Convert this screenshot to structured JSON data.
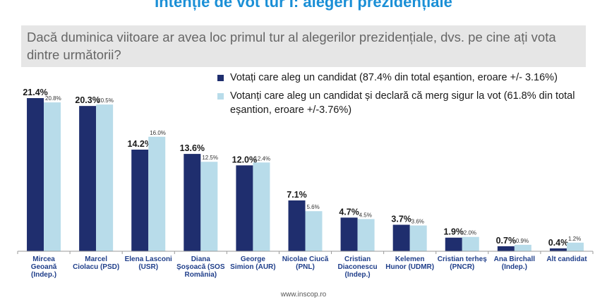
{
  "title": "Intenție de vot tur I: alegeri prezidențiale",
  "question": "Dacă duminica viitoare ar avea loc primul tur al alegerilor prezidențiale, dvs. pe cine ați vota dintre următorii?",
  "source": "www.inscop.ro",
  "colors": {
    "series1": "#1f2e6e",
    "series2": "#b8dcea",
    "axis": "#9a9a9a",
    "title": "#1a8fd6"
  },
  "chart_data": {
    "type": "bar",
    "categories": [
      [
        "Mircea",
        "Geoană",
        "(Indep.)"
      ],
      [
        "Marcel",
        "Ciolacu (PSD)"
      ],
      [
        "Elena Lasconi",
        "(USR)"
      ],
      [
        "Diana",
        "Șoșoacă (SOS",
        "România)"
      ],
      [
        "George",
        "Simion (AUR)"
      ],
      [
        "Nicolae  Ciucă",
        "(PNL)"
      ],
      [
        "Cristian",
        "Diaconescu",
        "(Indep.)"
      ],
      [
        "Kelemen",
        "Hunor (UDMR)"
      ],
      [
        "Cristian terheș",
        "(PNCR)"
      ],
      [
        "Ana Birchall",
        "(Indep.)"
      ],
      [
        "Alt candidat"
      ]
    ],
    "series": [
      {
        "name": "Votați care aleg un candidat (87.4% din total eșantion, eroare +/- 3.16%)",
        "values": [
          21.4,
          20.3,
          14.2,
          13.6,
          12.0,
          7.1,
          4.7,
          3.7,
          1.9,
          0.7,
          0.4
        ],
        "labels": [
          "21.4%",
          "20.3%",
          "14.2%",
          "13.6%",
          "12.0%",
          "7.1%",
          "4.7%",
          "3.7%",
          "1.9%",
          "0.7%",
          "0.4%"
        ]
      },
      {
        "name": "Votanți care aleg un candidat și declară că merg sigur la vot (61.8% din total eșantion, eroare +/-3.76%)",
        "values": [
          20.8,
          20.5,
          16.0,
          12.5,
          12.4,
          5.6,
          4.5,
          3.6,
          2.0,
          0.9,
          1.2
        ],
        "labels": [
          "20.8%",
          "20.5%",
          "16.0%",
          "12.5%",
          "12.4%",
          "5.6%",
          "4.5%",
          "3.6%",
          "2.0%",
          "0.9%",
          "1.2%"
        ]
      }
    ],
    "ylim": [
      0,
      24
    ],
    "grid": false,
    "legend": "top-right"
  }
}
